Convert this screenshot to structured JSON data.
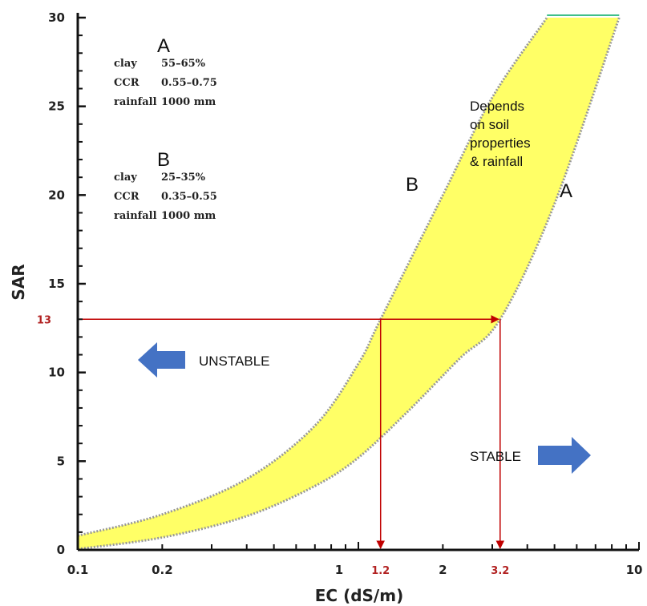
{
  "chart_data": {
    "type": "area",
    "xlabel": "EC (dS/m)",
    "ylabel": "SAR",
    "x_scale": "log",
    "xlim": [
      0.1,
      10
    ],
    "ylim": [
      0,
      30
    ],
    "x_ticks": [
      {
        "value": 0.1,
        "label": "0.1"
      },
      {
        "value": 0.2,
        "label": "0.2"
      },
      {
        "value": 1,
        "label": "1"
      },
      {
        "value": 2,
        "label": "2"
      },
      {
        "value": 10,
        "label": "10"
      }
    ],
    "y_ticks": [
      {
        "value": 0,
        "label": "0"
      },
      {
        "value": 5,
        "label": "5"
      },
      {
        "value": 10,
        "label": "10"
      },
      {
        "value": 15,
        "label": "15"
      },
      {
        "value": 20,
        "label": "20"
      },
      {
        "value": 25,
        "label": "25"
      },
      {
        "value": 30,
        "label": "30"
      }
    ],
    "series": [
      {
        "name": "B",
        "x": [
          0.1,
          0.2,
          0.4,
          0.7,
          1.0,
          1.2,
          2.0,
          3.0,
          4.7
        ],
        "y": [
          0.8,
          2.0,
          4.0,
          7.0,
          10.5,
          13,
          20,
          25.5,
          30
        ]
      },
      {
        "name": "A",
        "x": [
          0.1,
          0.2,
          0.4,
          0.7,
          1.0,
          1.5,
          2.3,
          3.2,
          5.0,
          8.5
        ],
        "y": [
          0.05,
          0.7,
          1.9,
          3.6,
          5.2,
          7.8,
          10.8,
          13,
          19.5,
          30
        ]
      }
    ],
    "fill_color": "#ffff66",
    "curve_color": "#999999",
    "guide_color": "#c00000",
    "marker": {
      "sar": 13,
      "sar_label": "13",
      "ec_b": 1.2,
      "ec_b_label": "1.2",
      "ec_a": 3.2,
      "ec_a_label": "3.2"
    },
    "annotations": {
      "label_a": "A",
      "label_b": "B",
      "region_note": [
        "Depends",
        "on soil",
        "properties",
        "& rainfall"
      ],
      "unstable": "UNSTABLE",
      "stable": "STABLE",
      "arrow_color": "#4472c4"
    },
    "legend_blocks": [
      {
        "title": "A",
        "rows": [
          {
            "key": "clay",
            "value": "55–65%"
          },
          {
            "key": "CCR",
            "value": "0.55–0.75"
          },
          {
            "key": "rainfall",
            "value": "1000 mm"
          }
        ]
      },
      {
        "title": "B",
        "rows": [
          {
            "key": "clay",
            "value": "25–35%"
          },
          {
            "key": "CCR",
            "value": "0.35–0.55"
          },
          {
            "key": "rainfall",
            "value": "1000 mm"
          }
        ]
      }
    ]
  }
}
